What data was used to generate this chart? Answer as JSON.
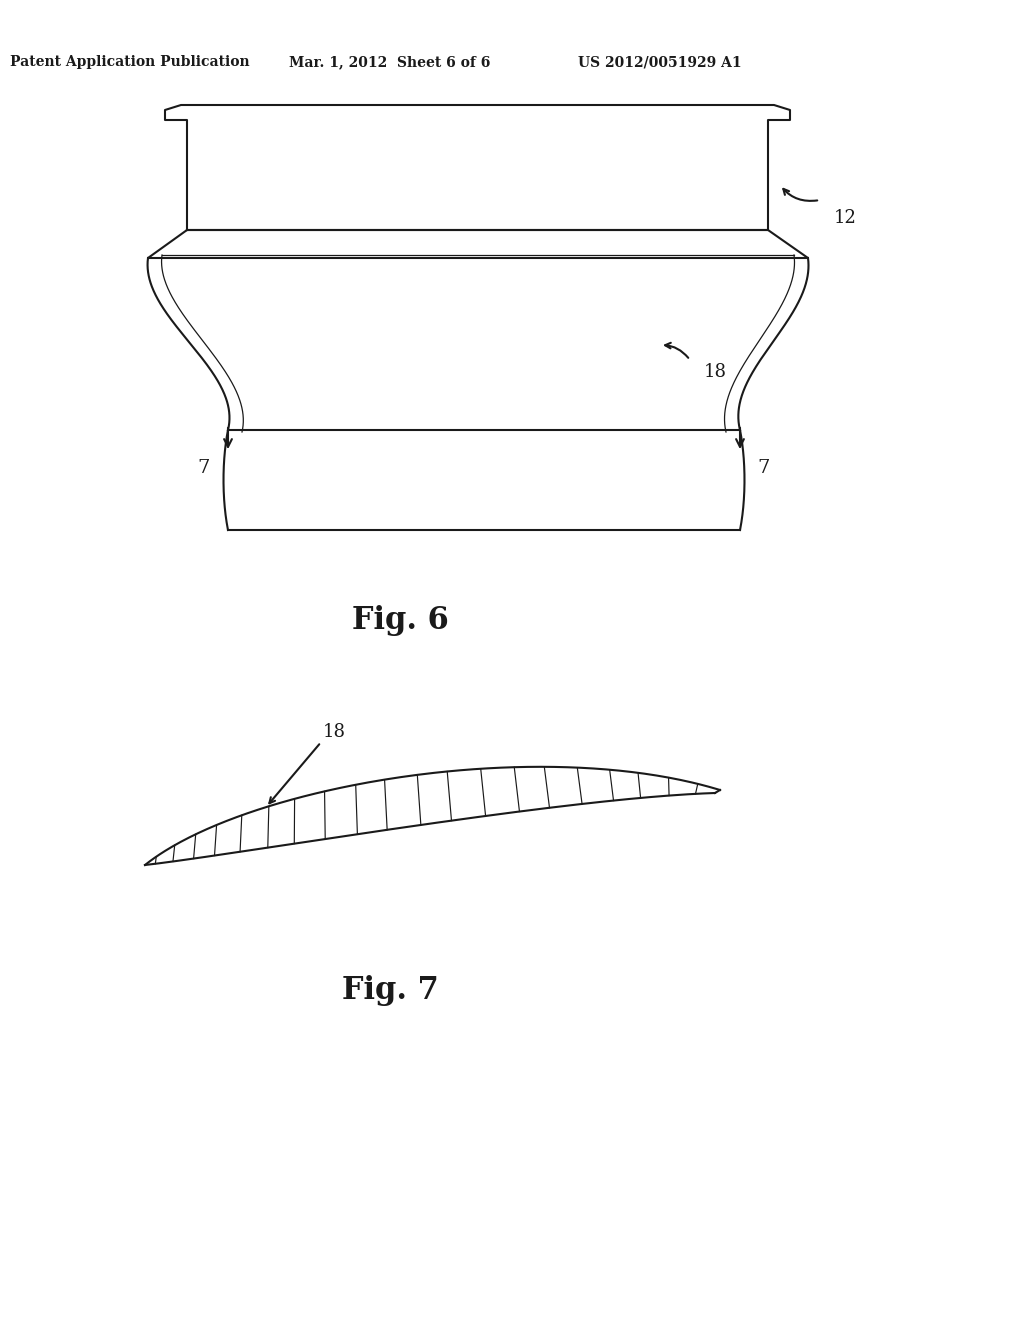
{
  "background_color": "#ffffff",
  "line_color": "#1a1a1a",
  "header_text": "Patent Application Publication",
  "header_date": "Mar. 1, 2012  Sheet 6 of 6",
  "header_patent": "US 2012/0051929 A1",
  "fig6_label": "Fig. 6",
  "fig7_label": "Fig. 7",
  "label_12": "12",
  "label_18_fig6": "18",
  "label_18_fig7": "18",
  "label_7a": "7",
  "label_7b": "7"
}
